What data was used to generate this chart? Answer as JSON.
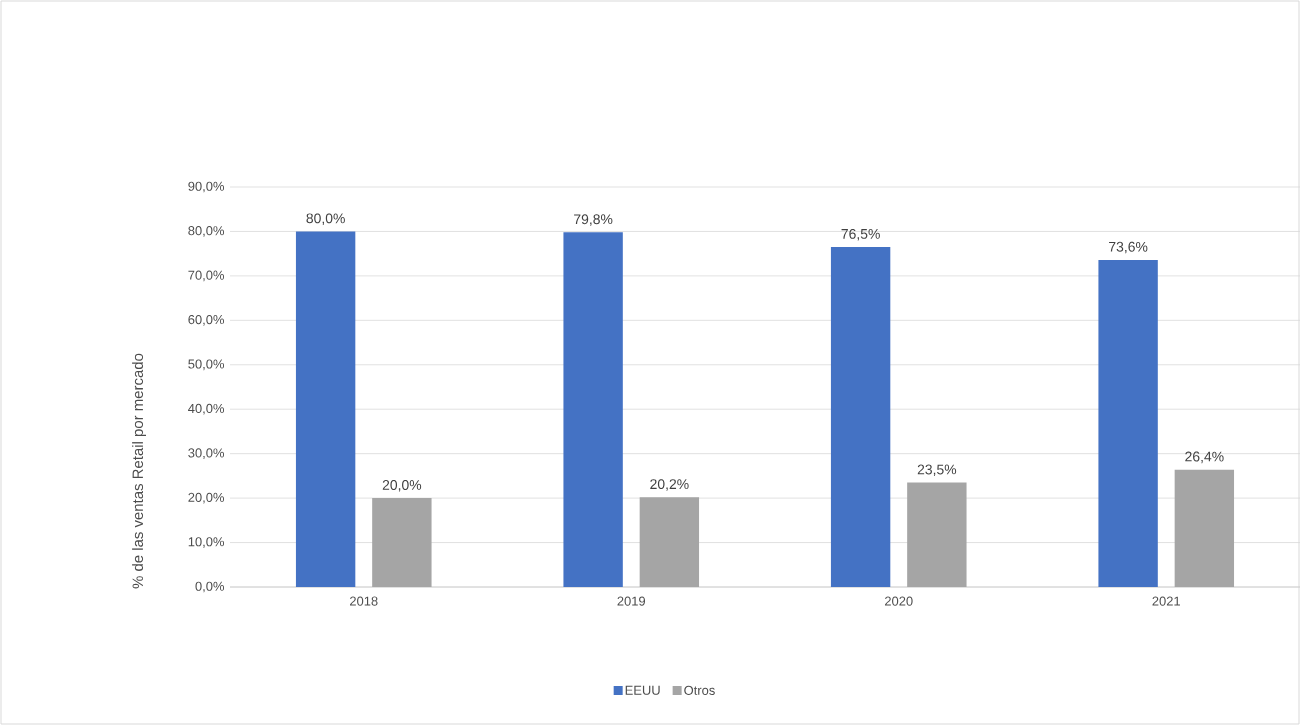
{
  "chart_data": {
    "type": "bar",
    "ylabel": "% de las ventas Retail por mercado",
    "categories": [
      "2018",
      "2019",
      "2020",
      "2021"
    ],
    "series": [
      {
        "name": "EEUU",
        "color": "#4472c4",
        "values": [
          80.0,
          79.8,
          76.5,
          73.6
        ],
        "value_labels": [
          "80,0%",
          "79,8%",
          "76,5%",
          "73,6%"
        ]
      },
      {
        "name": "Otros",
        "color": "#a5a5a5",
        "values": [
          20.0,
          20.2,
          23.5,
          26.4
        ],
        "value_labels": [
          "20,0%",
          "20,2%",
          "23,5%",
          "26,4%"
        ]
      }
    ],
    "ylim": [
      0,
      90
    ],
    "yticks": [
      {
        "value": 0,
        "label": "0,0%"
      },
      {
        "value": 10,
        "label": "10,0%"
      },
      {
        "value": 20,
        "label": "20,0%"
      },
      {
        "value": 30,
        "label": "30,0%"
      },
      {
        "value": 40,
        "label": "40,0%"
      },
      {
        "value": 50,
        "label": "50,0%"
      },
      {
        "value": 60,
        "label": "60,0%"
      },
      {
        "value": 70,
        "label": "70,0%"
      },
      {
        "value": 80,
        "label": "80,0%"
      },
      {
        "value": 90,
        "label": "90,0%"
      }
    ],
    "grid": "y",
    "legend": "bottom"
  }
}
